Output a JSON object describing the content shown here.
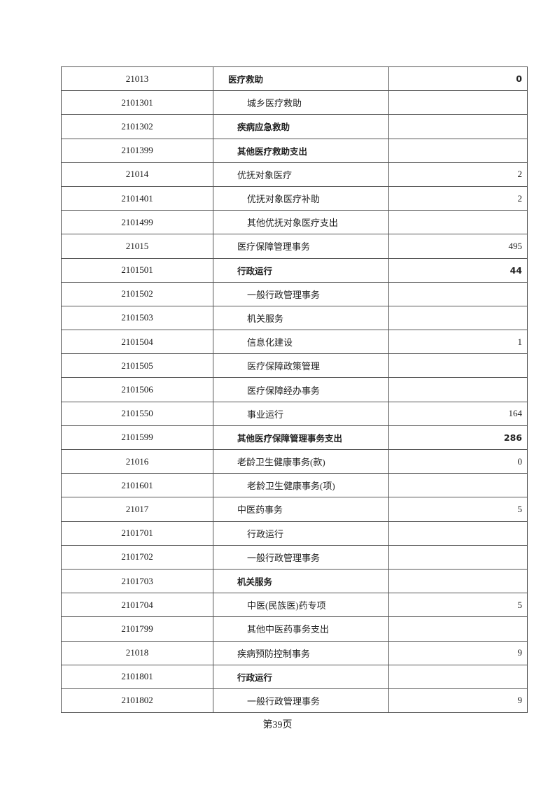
{
  "rows": [
    {
      "code": "21013",
      "name": "医疗救助",
      "amount": "0",
      "bold": true
    },
    {
      "code": "2101301",
      "name": "城乡医疗救助",
      "amount": "",
      "bold": false
    },
    {
      "code": "2101302",
      "name": "疾病应急救助",
      "amount": "",
      "bold": true
    },
    {
      "code": "2101399",
      "name": "其他医疗救助支出",
      "amount": "",
      "bold": true
    },
    {
      "code": "21014",
      "name": "优抚对象医疗",
      "amount": "2",
      "bold": false
    },
    {
      "code": "2101401",
      "name": "优抚对象医疗补助",
      "amount": "2",
      "bold": false
    },
    {
      "code": "2101499",
      "name": "其他优抚对象医疗支出",
      "amount": "",
      "bold": false
    },
    {
      "code": "21015",
      "name": "医疗保障管理事务",
      "amount": "495",
      "bold": false
    },
    {
      "code": "2101501",
      "name": "行政运行",
      "amount": "44",
      "bold": true
    },
    {
      "code": "2101502",
      "name": "一般行政管理事务",
      "amount": "",
      "bold": false
    },
    {
      "code": "2101503",
      "name": "机关服务",
      "amount": "",
      "bold": false
    },
    {
      "code": "2101504",
      "name": "信息化建设",
      "amount": "1",
      "bold": false
    },
    {
      "code": "2101505",
      "name": "医疗保障政策管理",
      "amount": "",
      "bold": false
    },
    {
      "code": "2101506",
      "name": "医疗保障经办事务",
      "amount": "",
      "bold": false
    },
    {
      "code": "2101550",
      "name": "事业运行",
      "amount": "164",
      "bold": false
    },
    {
      "code": "2101599",
      "name": "其他医疗保障管理事务支出",
      "amount": "286",
      "bold": true
    },
    {
      "code": "21016",
      "name": "老龄卫生健康事务(款)",
      "amount": "0",
      "bold": false
    },
    {
      "code": "2101601",
      "name": "老龄卫生健康事务(项)",
      "amount": "",
      "bold": false
    },
    {
      "code": "21017",
      "name": "中医药事务",
      "amount": "5",
      "bold": false
    },
    {
      "code": "2101701",
      "name": "行政运行",
      "amount": "",
      "bold": false
    },
    {
      "code": "2101702",
      "name": "一般行政管理事务",
      "amount": "",
      "bold": false
    },
    {
      "code": "2101703",
      "name": "机关服务",
      "amount": "",
      "bold": true
    },
    {
      "code": "2101704",
      "name": "中医(民族医)药专项",
      "amount": "5",
      "bold": false
    },
    {
      "code": "2101799",
      "name": "其他中医药事务支出",
      "amount": "",
      "bold": false
    },
    {
      "code": "21018",
      "name": "疾病预防控制事务",
      "amount": "9",
      "bold": false
    },
    {
      "code": "2101801",
      "name": "行政运行",
      "amount": "",
      "bold": true
    },
    {
      "code": "2101802",
      "name": "一般行政管理事务",
      "amount": "9",
      "bold": false
    }
  ],
  "footer": {
    "page_label": "第39页"
  }
}
